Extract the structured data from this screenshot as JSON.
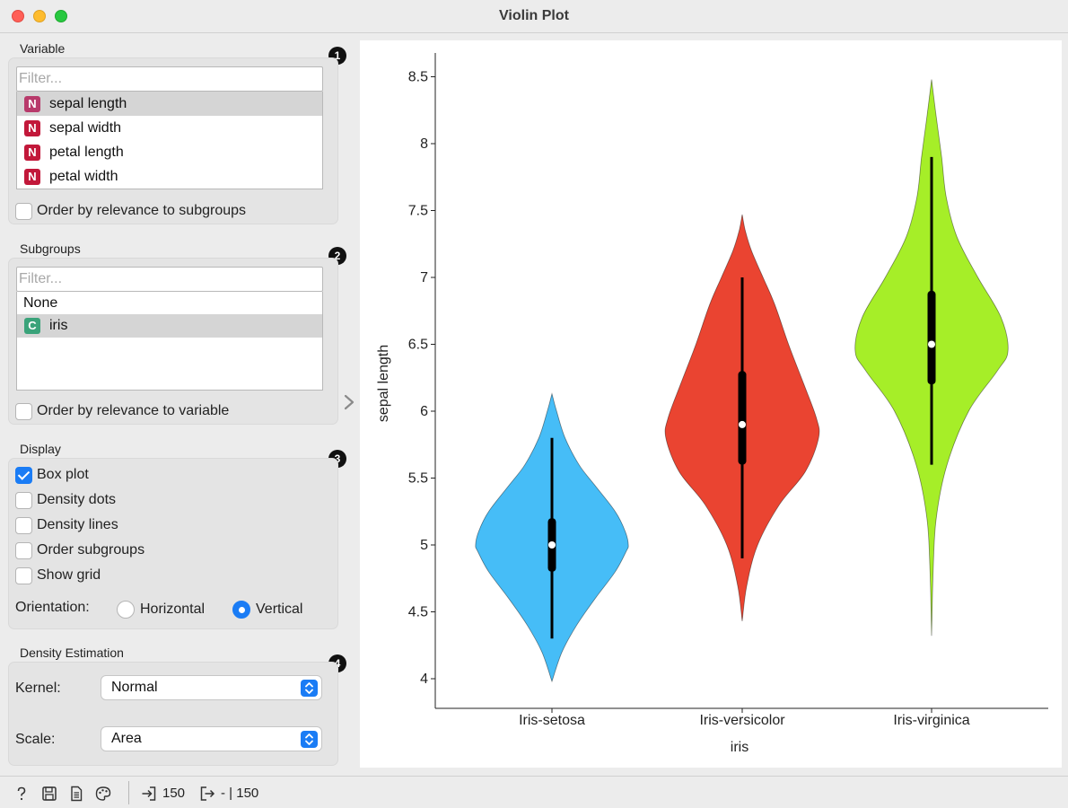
{
  "window": {
    "title": "Violin Plot"
  },
  "variable": {
    "title": "Variable",
    "filter_placeholder": "Filter...",
    "items": [
      {
        "type": "N",
        "label": "sepal length",
        "selected": true
      },
      {
        "type": "N",
        "label": "sepal width",
        "selected": false
      },
      {
        "type": "N",
        "label": "petal length",
        "selected": false
      },
      {
        "type": "N",
        "label": "petal width",
        "selected": false
      }
    ],
    "order_label": "Order by relevance to subgroups",
    "order_checked": false
  },
  "subgroups": {
    "title": "Subgroups",
    "filter_placeholder": "Filter...",
    "none_label": "None",
    "items": [
      {
        "type": "C",
        "label": "iris",
        "selected": true
      }
    ],
    "order_label": "Order by relevance to variable",
    "order_checked": false
  },
  "display": {
    "title": "Display",
    "options": [
      {
        "label": "Box plot",
        "checked": true
      },
      {
        "label": "Density dots",
        "checked": false
      },
      {
        "label": "Density lines",
        "checked": false
      },
      {
        "label": "Order subgroups",
        "checked": false
      },
      {
        "label": "Show grid",
        "checked": false
      }
    ],
    "orientation_label": "Orientation:",
    "orientation_horizontal": "Horizontal",
    "orientation_vertical": "Vertical",
    "orientation_value": "Vertical"
  },
  "density": {
    "title": "Density Estimation",
    "kernel_label": "Kernel:",
    "kernel_value": "Normal",
    "scale_label": "Scale:",
    "scale_value": "Area"
  },
  "badges": [
    "1",
    "2",
    "3",
    "4"
  ],
  "status": {
    "input_count": "150",
    "output_text": "- | 150"
  },
  "icons": {
    "help": "help-icon",
    "save": "save-icon",
    "report": "report-icon",
    "palette": "palette-icon",
    "input": "input-icon",
    "output": "output-icon"
  },
  "colors": {
    "numeric_icon": "#c2183a",
    "numeric_icon_selected": "#b83a6b",
    "categorical_icon": "#3aa37a",
    "accent": "#1a7cf5",
    "setosa": "#46bdf7",
    "versicolor": "#ea4431",
    "virginica": "#a6ee28"
  },
  "chart_data": {
    "type": "violin",
    "xlabel": "iris",
    "ylabel": "sepal length",
    "ylim": [
      3.9,
      8.6
    ],
    "yticks": [
      4,
      4.5,
      5,
      5.5,
      6,
      6.5,
      7,
      7.5,
      8,
      8.5
    ],
    "ytick_labels": [
      "4",
      "4.5",
      "5",
      "5.5",
      "6",
      "6.5",
      "7",
      "7.5",
      "8",
      "8.5"
    ],
    "categories": [
      "Iris-setosa",
      "Iris-versicolor",
      "Iris-virginica"
    ],
    "grid": false,
    "series": [
      {
        "category": "Iris-setosa",
        "color": "#46bdf7",
        "density": {
          "y_min": 3.98,
          "y_max": 6.13,
          "profile": [
            [
              3.98,
              0.0
            ],
            [
              4.2,
              0.13
            ],
            [
              4.4,
              0.32
            ],
            [
              4.6,
              0.56
            ],
            [
              4.8,
              0.82
            ],
            [
              4.95,
              0.96
            ],
            [
              5.0,
              0.99
            ],
            [
              5.1,
              0.95
            ],
            [
              5.25,
              0.82
            ],
            [
              5.45,
              0.55
            ],
            [
              5.6,
              0.35
            ],
            [
              5.8,
              0.17
            ],
            [
              6.0,
              0.06
            ],
            [
              6.13,
              0.0
            ]
          ]
        },
        "box": {
          "whisker_low": 4.3,
          "q1": 4.8,
          "median": 5.0,
          "q3": 5.2,
          "whisker_high": 5.8
        }
      },
      {
        "category": "Iris-versicolor",
        "color": "#ea4431",
        "density": {
          "y_min": 4.43,
          "y_max": 7.47,
          "profile": [
            [
              4.43,
              0.0
            ],
            [
              4.7,
              0.06
            ],
            [
              5.0,
              0.2
            ],
            [
              5.3,
              0.48
            ],
            [
              5.55,
              0.82
            ],
            [
              5.8,
              0.99
            ],
            [
              5.95,
              0.96
            ],
            [
              6.2,
              0.8
            ],
            [
              6.5,
              0.6
            ],
            [
              6.8,
              0.42
            ],
            [
              7.0,
              0.27
            ],
            [
              7.2,
              0.12
            ],
            [
              7.35,
              0.04
            ],
            [
              7.47,
              0.0
            ]
          ]
        },
        "box": {
          "whisker_low": 4.9,
          "q1": 5.6,
          "median": 5.9,
          "q3": 6.3,
          "whisker_high": 7.0
        }
      },
      {
        "category": "Iris-virginica",
        "color": "#a6ee28",
        "density": {
          "y_min": 4.32,
          "y_max": 8.48,
          "profile": [
            [
              4.32,
              0.0
            ],
            [
              4.8,
              0.02
            ],
            [
              5.2,
              0.06
            ],
            [
              5.6,
              0.2
            ],
            [
              6.0,
              0.48
            ],
            [
              6.3,
              0.85
            ],
            [
              6.45,
              0.99
            ],
            [
              6.7,
              0.9
            ],
            [
              7.0,
              0.6
            ],
            [
              7.3,
              0.33
            ],
            [
              7.6,
              0.19
            ],
            [
              7.9,
              0.13
            ],
            [
              8.2,
              0.06
            ],
            [
              8.48,
              0.0
            ]
          ]
        },
        "box": {
          "whisker_low": 5.6,
          "q1": 6.2,
          "median": 6.5,
          "q3": 6.9,
          "whisker_high": 7.9
        }
      }
    ]
  }
}
